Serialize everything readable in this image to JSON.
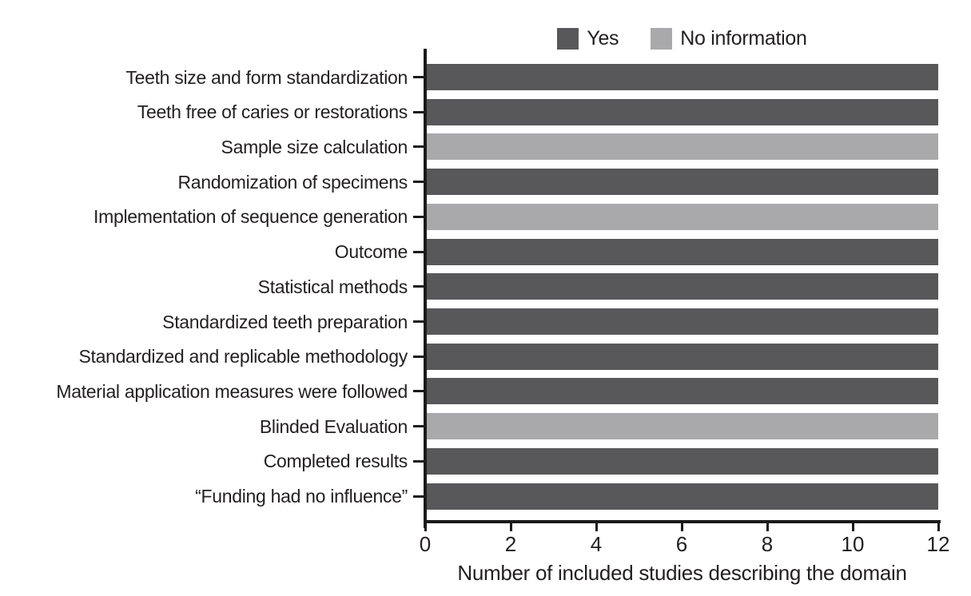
{
  "figure": {
    "background": "#ffffff",
    "text_color": "#231f20",
    "axis_color": "#1a1a1a"
  },
  "colors": {
    "series": {
      "Yes": "#58585a",
      "No information": "#a9a9ab"
    }
  },
  "legend": {
    "items": [
      {
        "label": "Yes",
        "series": "Yes"
      },
      {
        "label": "No information",
        "series": "No information"
      }
    ]
  },
  "chart_data": {
    "type": "bar",
    "orientation": "horizontal",
    "title": "",
    "xlabel": "Number of included studies describing the domain",
    "xlim": [
      0,
      12
    ],
    "xticks": [
      0,
      2,
      4,
      6,
      8,
      10,
      12
    ],
    "grid": false,
    "legend_position": "top-center",
    "legend_entries": [
      "Yes",
      "No information"
    ],
    "categories": [
      "Teeth size and form standardization",
      "Teeth free of caries or restorations",
      "Sample size calculation",
      "Randomization of specimens",
      "Implementation of sequence generation",
      "Outcome",
      "Statistical methods",
      "Standardized teeth preparation",
      "Standardized and replicable methodology",
      "Material application measures were followed",
      "Blinded Evaluation",
      "Completed results",
      "“Funding had no influence”"
    ],
    "values": [
      12,
      12,
      12,
      12,
      12,
      12,
      12,
      12,
      12,
      12,
      12,
      12,
      12
    ],
    "series_by_category": [
      "Yes",
      "Yes",
      "No information",
      "Yes",
      "No information",
      "Yes",
      "Yes",
      "Yes",
      "Yes",
      "Yes",
      "No information",
      "Yes",
      "Yes"
    ]
  }
}
